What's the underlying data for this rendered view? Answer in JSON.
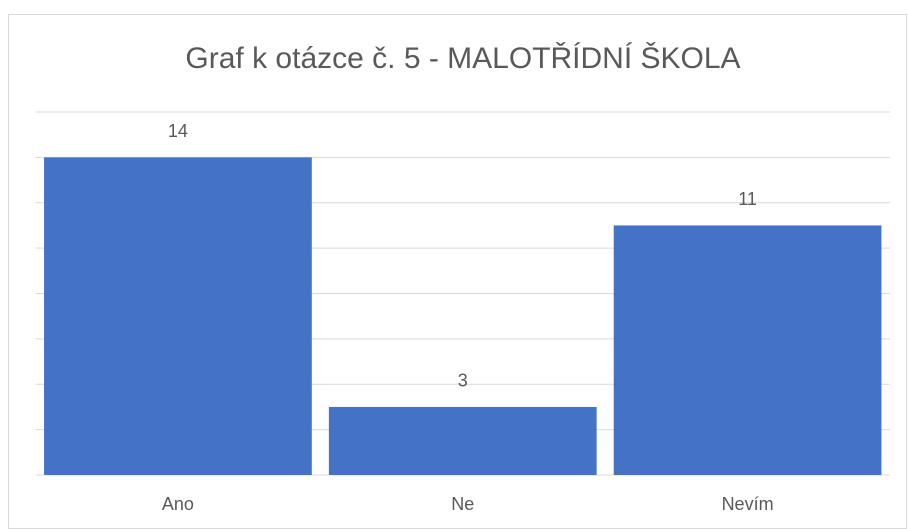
{
  "chart_data": {
    "type": "bar",
    "title": "Graf k otázce č. 5 - MALOTŘÍDNÍ ŠKOLA",
    "categories": [
      "Ano",
      "Ne",
      "Nevím"
    ],
    "values": [
      14,
      3,
      11
    ],
    "color": "#4472c4",
    "ylim": [
      0,
      16
    ],
    "yticks": [
      0,
      2,
      4,
      6,
      8,
      10,
      12,
      14,
      16
    ],
    "grid": true
  }
}
